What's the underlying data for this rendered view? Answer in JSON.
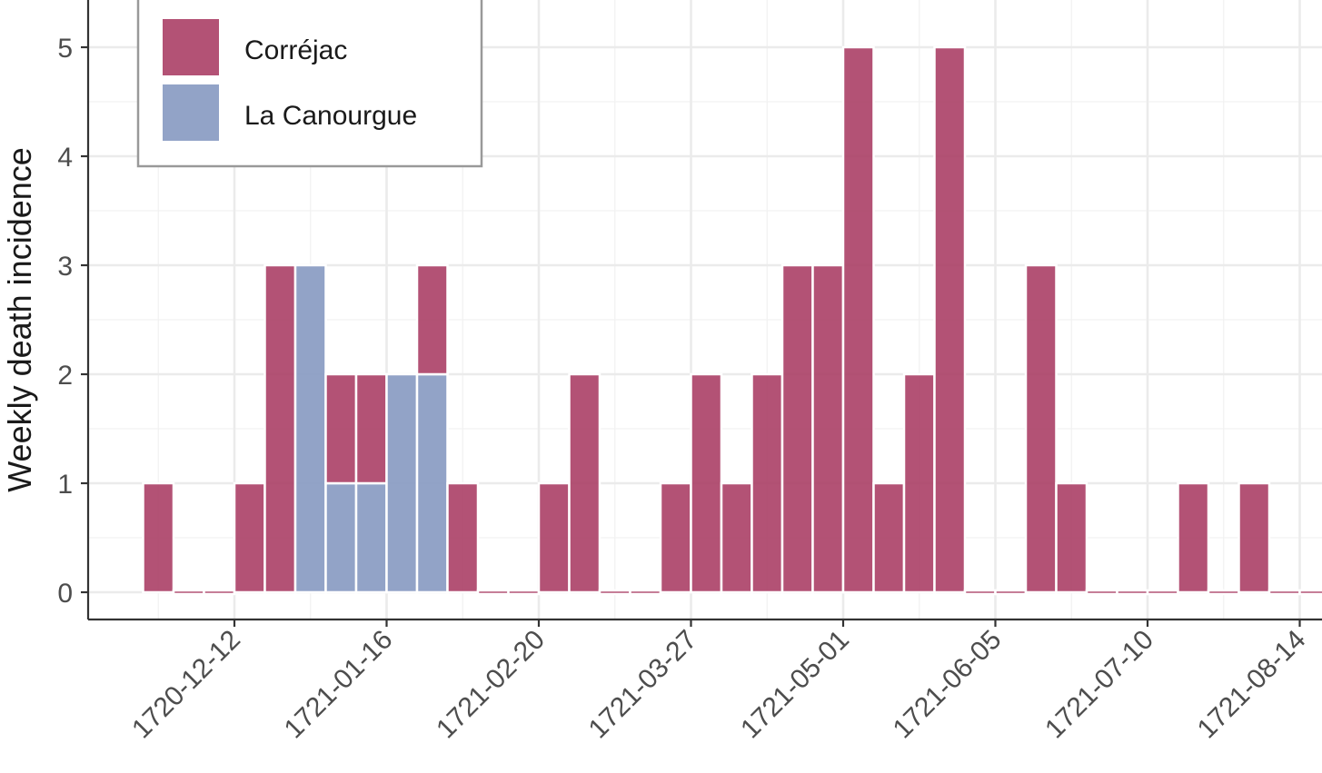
{
  "chart_data": {
    "type": "bar",
    "stacked": true,
    "bin_width_days": 7,
    "ylabel": "Weekly death incidence",
    "xlabel": "",
    "ylim": [
      0,
      5
    ],
    "y_ticks": [
      "0",
      "1",
      "2",
      "3",
      "4",
      "5"
    ],
    "x_ticks": [
      "1720-12-12",
      "1721-01-16",
      "1721-02-20",
      "1721-03-27",
      "1721-05-01",
      "1721-06-05",
      "1721-07-10",
      "1721-08-14"
    ],
    "x_tick_rotation": -45,
    "grid": true,
    "legend_position": "top-left",
    "categories": [
      "1720-11-21",
      "1720-11-28",
      "1720-12-05",
      "1720-12-12",
      "1720-12-19",
      "1720-12-26",
      "1721-01-02",
      "1721-01-09",
      "1721-01-16",
      "1721-01-23",
      "1721-01-30",
      "1721-02-06",
      "1721-02-13",
      "1721-02-20",
      "1721-02-27",
      "1721-03-06",
      "1721-03-13",
      "1721-03-20",
      "1721-03-27",
      "1721-04-03",
      "1721-04-10",
      "1721-04-17",
      "1721-04-24",
      "1721-05-01",
      "1721-05-08",
      "1721-05-15",
      "1721-05-22",
      "1721-05-29",
      "1721-06-05",
      "1721-06-12",
      "1721-06-19",
      "1721-06-26",
      "1721-07-03",
      "1721-07-10",
      "1721-07-17",
      "1721-07-24",
      "1721-07-31",
      "1721-08-07",
      "1721-08-14"
    ],
    "series": [
      {
        "name": "La Canourgue",
        "color": "#8c9ec4",
        "values": [
          0,
          0,
          0,
          0,
          0,
          3,
          1,
          1,
          2,
          2,
          0,
          0,
          0,
          0,
          0,
          0,
          0,
          0,
          0,
          0,
          0,
          0,
          0,
          0,
          0,
          0,
          0,
          0,
          0,
          0,
          0,
          0,
          0,
          0,
          0,
          0,
          0,
          0,
          0
        ]
      },
      {
        "name": "Corréjac",
        "color": "#a93a62",
        "values": [
          1,
          0,
          0,
          1,
          3,
          0,
          1,
          1,
          0,
          1,
          1,
          0,
          0,
          1,
          2,
          0,
          0,
          1,
          2,
          1,
          2,
          3,
          3,
          5,
          1,
          2,
          5,
          0,
          0,
          3,
          1,
          0,
          0,
          0,
          1,
          0,
          1,
          0,
          0
        ]
      }
    ],
    "legend": [
      "Corréjac",
      "La Canourgue"
    ]
  }
}
